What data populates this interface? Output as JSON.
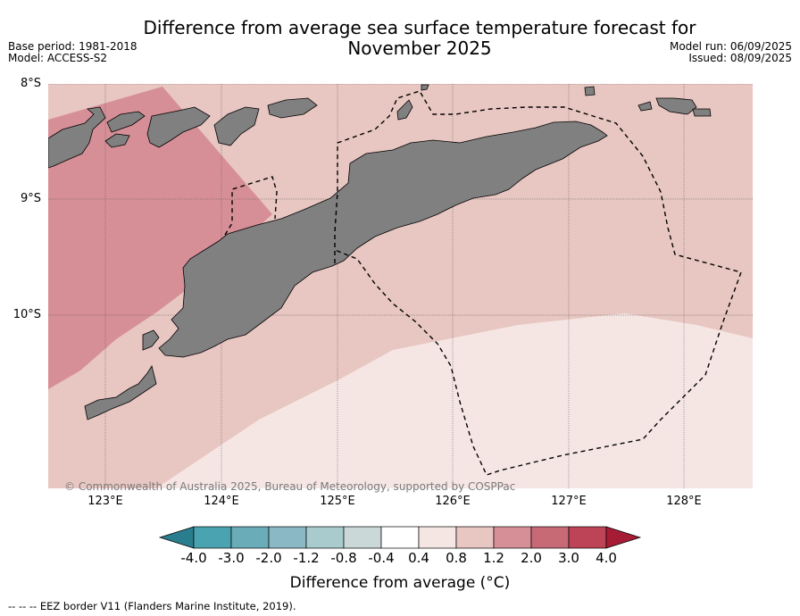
{
  "header": {
    "title_line1": "Difference from average sea surface temperature forecast for",
    "title_line2": "November 2025",
    "base_period": "Base period: 1981-2018",
    "model": "Model: ACCESS-S2",
    "model_run": "Model run: 06/09/2025",
    "issued": "Issued: 08/09/2025"
  },
  "axes": {
    "lat_labels": [
      "8°S",
      "9°S",
      "10°S"
    ],
    "lon_labels": [
      "123°E",
      "124°E",
      "125°E",
      "126°E",
      "127°E",
      "128°E"
    ]
  },
  "colorbar": {
    "ticks": [
      "-4.0",
      "-3.0",
      "-2.0",
      "-1.2",
      "-0.8",
      "-0.4",
      "0.4",
      "0.8",
      "1.2",
      "2.0",
      "3.0",
      "4.0"
    ],
    "title": "Difference from average (°C)",
    "colors": [
      "#2a7d8c",
      "#4aa3b0",
      "#6aadb9",
      "#8ab8c4",
      "#aacbcd",
      "#cad8d8",
      "#ffffff",
      "#f5e6e4",
      "#e8c6c1",
      "#d78f97",
      "#c76a76",
      "#bd4456",
      "#a71c35"
    ]
  },
  "map": {
    "sea_colors": {
      "band_0_4_0_8": "#f5e6e4",
      "band_0_8_1_2": "#e8c6c1",
      "band_1_2_2_0": "#d78f97"
    },
    "land_color": "#808080"
  },
  "credit": "© Commonwealth of Australia 2025, Bureau of Meteorology, supported by COSPPac",
  "footnote": "-- -- -- EEZ border V11 (Flanders Marine Institute, 2019)."
}
